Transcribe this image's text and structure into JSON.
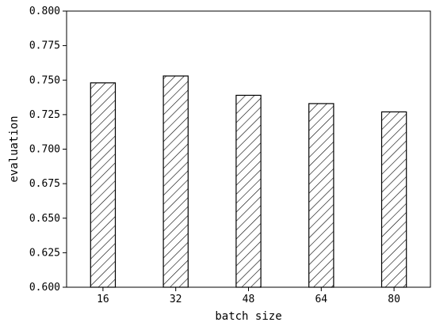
{
  "chart_data": {
    "type": "bar",
    "categories": [
      "16",
      "32",
      "48",
      "64",
      "80"
    ],
    "values": [
      0.748,
      0.753,
      0.739,
      0.733,
      0.727
    ],
    "title": "",
    "xlabel": "batch size",
    "ylabel": "evaluation",
    "ylim": [
      0.6,
      0.8
    ],
    "yticks": [
      "0.600",
      "0.625",
      "0.650",
      "0.675",
      "0.700",
      "0.725",
      "0.750",
      "0.775",
      "0.800"
    ],
    "bar_fill": "hatched",
    "grid": false,
    "legend": "none"
  }
}
